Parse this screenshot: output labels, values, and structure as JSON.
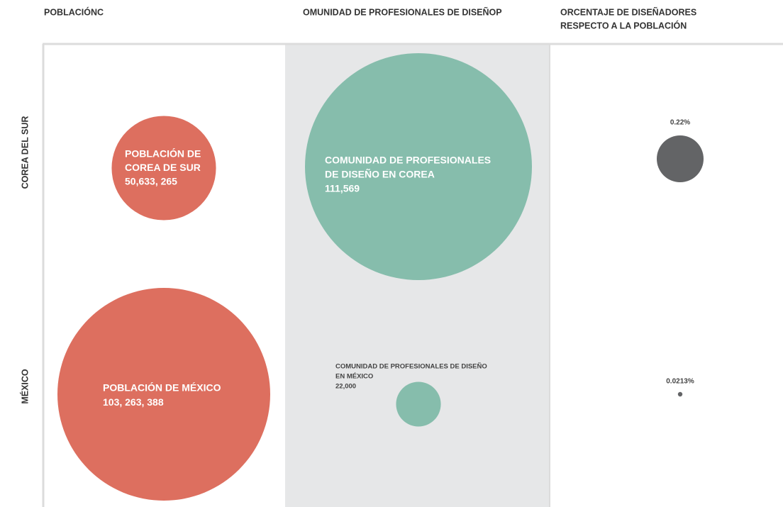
{
  "columns": [
    {
      "title": [
        "POBLACIÓNC"
      ],
      "color": "#dd6f5f"
    },
    {
      "title": [
        "OMUNIDAD DE PROFESIONALES DE DISEÑOP"
      ],
      "color": "#86bdac"
    },
    {
      "title": [
        "ORCENTAJE DE DISEÑADORES",
        "RESPECTO A LA POBLACIÓN"
      ],
      "color": "#636466"
    }
  ],
  "rows": [
    {
      "label": "COREA DEL SUR",
      "cells": [
        {
          "label": [
            "POBLACIÓN DE",
            "COREA DE SUR"
          ],
          "value": 50633265,
          "value_label": "50,633, 265"
        },
        {
          "label": [
            "COMUNIDAD DE PROFESIONALES",
            "DE DISEÑO EN COREA"
          ],
          "value": 111569,
          "value_label": "111,569"
        },
        {
          "value": 0.22,
          "value_label": "0.22%"
        }
      ]
    },
    {
      "label": "MÉXICO",
      "cells": [
        {
          "label": [
            "POBLACIÓN DE MÉXICO"
          ],
          "value": 103263388,
          "value_label": "103, 263, 388"
        },
        {
          "label": [
            "COMUNIDAD DE PROFESIONALES DE DISEÑO",
            "EN MÉXICO"
          ],
          "value": 22000,
          "value_label": "22,000"
        },
        {
          "value": 0.0213,
          "value_label": "0.0213%"
        }
      ]
    }
  ]
}
